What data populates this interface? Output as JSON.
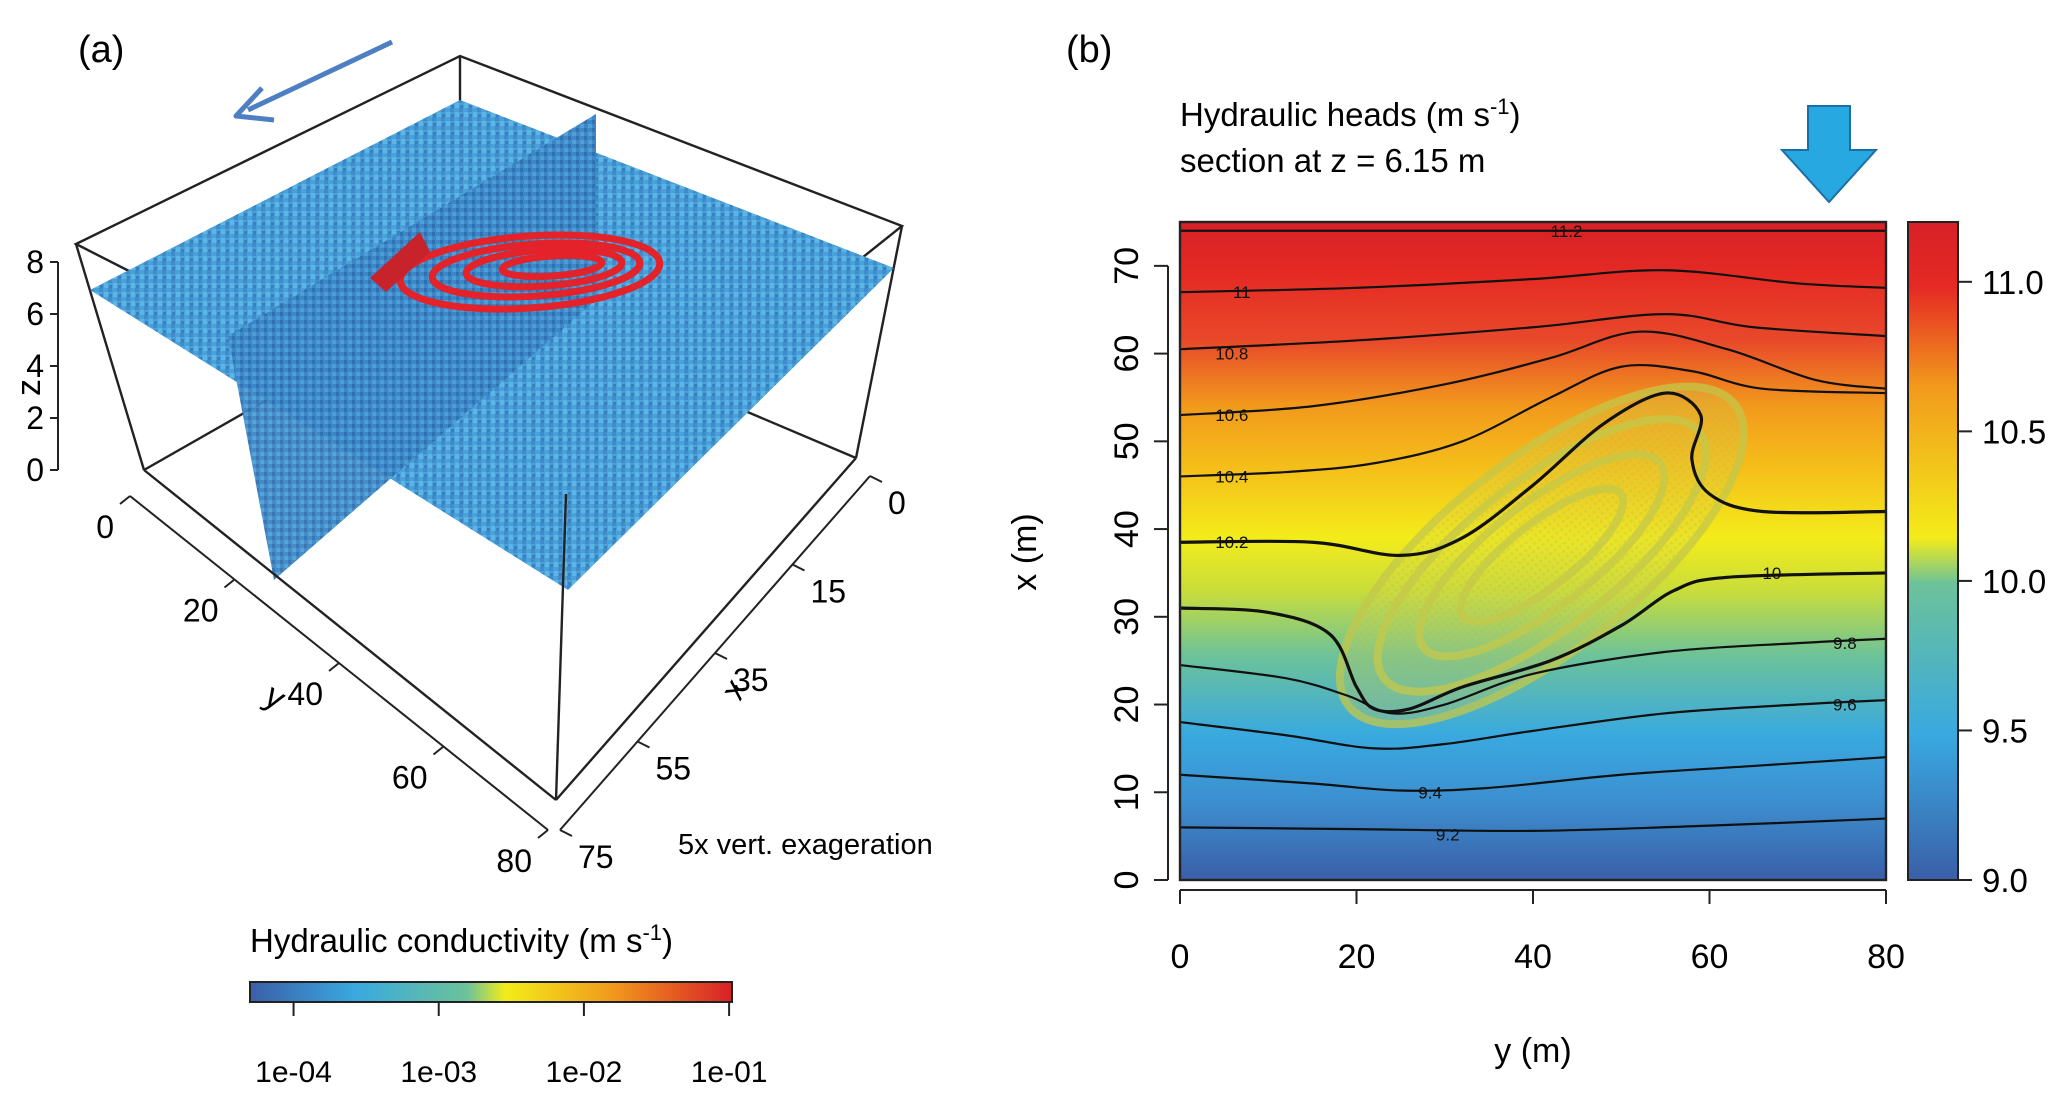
{
  "colors": {
    "scale": [
      "#3a5fa8",
      "#39a9e0",
      "#6cc29a",
      "#f3ec1a",
      "#f29a1c",
      "#e52a24",
      "#d72127"
    ],
    "volume_blue": "#4a9fd6",
    "volume_dark": "#2e6ea8",
    "plume_red": "#e4222a",
    "arrow_a": "#4f7fc3",
    "arrow_b": "#27a8e0"
  },
  "icons": {
    "flow_arrow_a": "arrow-left-icon",
    "flow_arrow_b": "arrow-down-icon"
  },
  "chart_data": [
    {
      "panel": "(a)",
      "type": "surface3d",
      "axes": {
        "x": {
          "label": "x",
          "ticks": [
            "0",
            "15",
            "35",
            "55",
            "75"
          ]
        },
        "y": {
          "label": "y",
          "ticks": [
            "0",
            "20",
            "40",
            "60",
            "80"
          ]
        },
        "z": {
          "label": "z",
          "ticks": [
            "0",
            "2",
            "4",
            "6",
            "8"
          ]
        }
      },
      "annotation": "5x vert. exageration",
      "colorbar": {
        "title_main": "Hydraulic conductivity (m s",
        "title_sup": "-1",
        "title_end": ")",
        "ticks": [
          "1e-04",
          "1e-03",
          "1e-02",
          "1e-01"
        ],
        "log_range": [
          -4.3,
          -0.98
        ]
      }
    },
    {
      "panel": "(b)",
      "type": "heatmap",
      "title_line1_main": "Hydraulic heads (m  s",
      "title_line1_sup": "-1",
      "title_line1_end": ")",
      "title_line2": "section at z = 6.15 m",
      "xlabel": "y (m)",
      "ylabel": "x (m)",
      "xlim": [
        0,
        80
      ],
      "ylim": [
        0,
        75
      ],
      "xticks": [
        0,
        20,
        40,
        60,
        80
      ],
      "yticks": [
        0,
        10,
        20,
        30,
        40,
        50,
        60,
        70
      ],
      "colorbar": {
        "range": [
          9.0,
          11.2
        ],
        "ticks": [
          "9.0",
          "9.5",
          "10.0",
          "10.5",
          "11.0"
        ]
      },
      "contours": [
        {
          "level": 9.2,
          "label": "9.2",
          "label_at": [
            29,
            5.2
          ],
          "points": [
            [
              0,
              6
            ],
            [
              20,
              5.8
            ],
            [
              40,
              5.6
            ],
            [
              60,
              6.2
            ],
            [
              80,
              7
            ]
          ]
        },
        {
          "level": 9.4,
          "label": "9.4",
          "label_at": [
            27,
            10
          ],
          "points": [
            [
              0,
              12
            ],
            [
              15,
              11
            ],
            [
              25,
              10.2
            ],
            [
              35,
              10.5
            ],
            [
              50,
              12
            ],
            [
              65,
              13
            ],
            [
              80,
              14
            ]
          ]
        },
        {
          "level": 9.6,
          "label": "9.6",
          "label_at": [
            74,
            20
          ],
          "points": [
            [
              0,
              18
            ],
            [
              12,
              16.5
            ],
            [
              22,
              15
            ],
            [
              30,
              15.5
            ],
            [
              40,
              17
            ],
            [
              55,
              19
            ],
            [
              70,
              20
            ],
            [
              80,
              20.5
            ]
          ]
        },
        {
          "level": 9.8,
          "label": "9.8",
          "label_at": [
            74,
            27
          ],
          "points": [
            [
              0,
              24.5
            ],
            [
              12,
              23
            ],
            [
              19,
              21
            ],
            [
              24,
              19
            ],
            [
              30,
              20
            ],
            [
              40,
              23.5
            ],
            [
              55,
              26
            ],
            [
              70,
              27
            ],
            [
              80,
              27.5
            ]
          ]
        },
        {
          "level": 10.0,
          "label": "10",
          "label_at": [
            66,
            35
          ],
          "points": [
            [
              0,
              31
            ],
            [
              10,
              30.5
            ],
            [
              17,
              28
            ],
            [
              20,
              22
            ],
            [
              22,
              19.5
            ],
            [
              26,
              19.5
            ],
            [
              32,
              22
            ],
            [
              42,
              25
            ],
            [
              50,
              29
            ],
            [
              56,
              33
            ],
            [
              62,
              34.5
            ],
            [
              80,
              35
            ]
          ]
        },
        {
          "level": 10.2,
          "label": "10.2",
          "label_at": [
            4,
            38.5
          ],
          "points": [
            [
              0,
              38.5
            ],
            [
              15,
              38.5
            ],
            [
              25,
              37
            ],
            [
              32,
              39
            ],
            [
              40,
              45
            ],
            [
              48,
              52
            ],
            [
              55,
              55.5
            ],
            [
              59,
              53
            ],
            [
              58,
              48
            ],
            [
              60,
              44
            ],
            [
              66,
              42
            ],
            [
              80,
              42
            ]
          ]
        },
        {
          "level": 10.4,
          "label": "10.4",
          "label_at": [
            4,
            46
          ],
          "points": [
            [
              0,
              46
            ],
            [
              12,
              46.5
            ],
            [
              22,
              47.5
            ],
            [
              32,
              50
            ],
            [
              42,
              55
            ],
            [
              50,
              58.5
            ],
            [
              58,
              58
            ],
            [
              66,
              56
            ],
            [
              80,
              55.5
            ]
          ]
        },
        {
          "level": 10.6,
          "label": "10.6",
          "label_at": [
            4,
            53
          ],
          "points": [
            [
              0,
              53
            ],
            [
              15,
              54
            ],
            [
              30,
              56.5
            ],
            [
              42,
              59.5
            ],
            [
              52,
              62.5
            ],
            [
              62,
              60.5
            ],
            [
              72,
              57
            ],
            [
              80,
              56
            ]
          ]
        },
        {
          "level": 10.8,
          "label": "10.8",
          "label_at": [
            4,
            60
          ],
          "points": [
            [
              0,
              60.5
            ],
            [
              20,
              61.5
            ],
            [
              40,
              63
            ],
            [
              55,
              64.5
            ],
            [
              65,
              63
            ],
            [
              80,
              62
            ]
          ]
        },
        {
          "level": 11.0,
          "label": "11",
          "label_at": [
            6,
            67
          ],
          "points": [
            [
              0,
              67
            ],
            [
              20,
              67.5
            ],
            [
              40,
              68.5
            ],
            [
              55,
              69.5
            ],
            [
              70,
              68
            ],
            [
              80,
              67.5
            ]
          ]
        },
        {
          "level": 11.2,
          "label": "11.2",
          "label_at": [
            42,
            74
          ],
          "points": [
            [
              0,
              74
            ],
            [
              40,
              74
            ],
            [
              80,
              74
            ]
          ]
        }
      ]
    }
  ]
}
